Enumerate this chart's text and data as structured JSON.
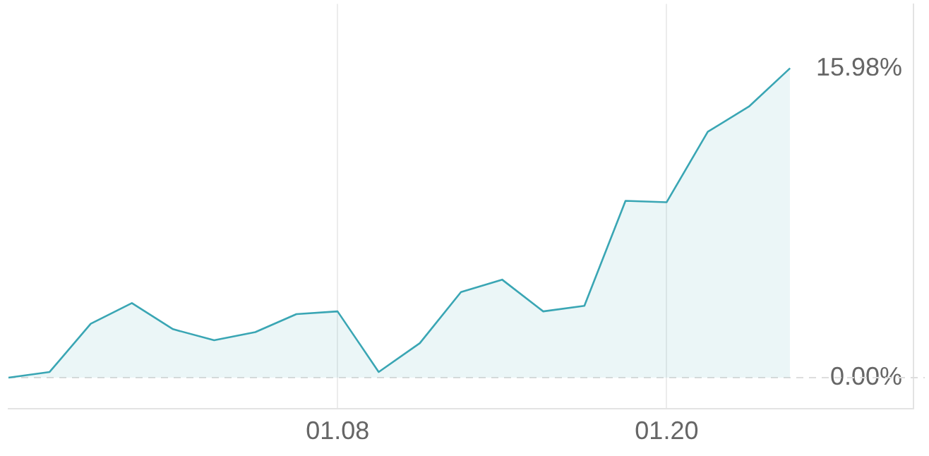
{
  "chart_data": {
    "type": "area",
    "categories": [
      null,
      null,
      null,
      null,
      null,
      null,
      null,
      null,
      "01.08",
      null,
      null,
      null,
      null,
      null,
      null,
      null,
      "01.20",
      null,
      null,
      null,
      null,
      null,
      null
    ],
    "series": [
      {
        "color": "#3aa6b4",
        "values": [
          0,
          0.29,
          2.78,
          3.85,
          2.5,
          1.93,
          2.35,
          3.28,
          3.42,
          0.29,
          1.78,
          4.42,
          5.06,
          3.42,
          3.71,
          9.13,
          9.06,
          12.7,
          14.0,
          15.98,
          null,
          null,
          null
        ]
      }
    ],
    "ylim": [
      -1.6,
      19.3
    ],
    "yticks": [
      {
        "value": 0,
        "label": "0.00%"
      },
      {
        "value": 15.98,
        "label": "15.98%"
      }
    ],
    "ref_lines": [
      {
        "axis": "y",
        "value": 0,
        "color": "#dddddd",
        "line_style": "dashed"
      }
    ],
    "grid": "x",
    "legend": false,
    "marker": "none",
    "line_style": "solid"
  }
}
